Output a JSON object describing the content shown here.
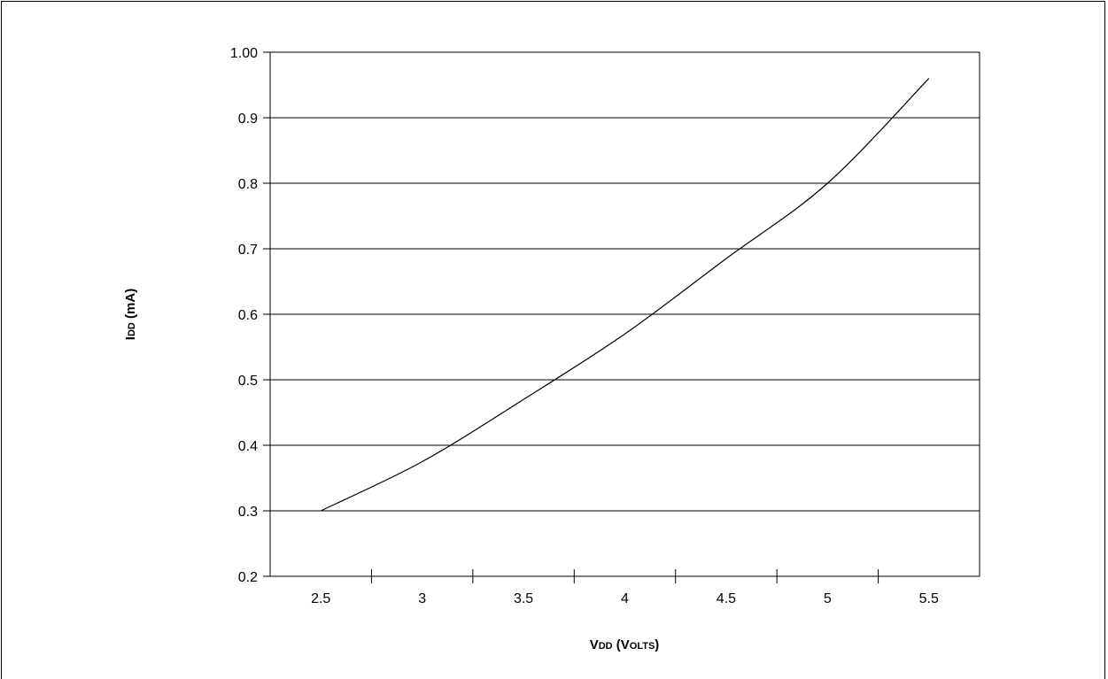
{
  "chart_data": {
    "type": "line",
    "title": "",
    "xlabel": {
      "main": "V",
      "sub": "DD",
      "rest_open": " (V",
      "rest_small": "OLTS",
      "rest_close": ")"
    },
    "ylabel": {
      "main": "I",
      "sub": "DD",
      "rest": " (mA)"
    },
    "x_categories": [
      "2.5",
      "3",
      "3.5",
      "4",
      "4.5",
      "5",
      "5.5"
    ],
    "y_ticks": [
      "0.2",
      "0.3",
      "0.4",
      "0.5",
      "0.6",
      "0.7",
      "0.8",
      "0.9",
      "1.00"
    ],
    "ylim": [
      0.2,
      1.0
    ],
    "grid": true,
    "series": [
      {
        "x": [
          2.5,
          3.0,
          3.5,
          4.0,
          4.5,
          5.0,
          5.5
        ],
        "y": [
          0.3,
          0.375,
          0.47,
          0.57,
          0.685,
          0.8,
          0.96
        ]
      }
    ]
  }
}
